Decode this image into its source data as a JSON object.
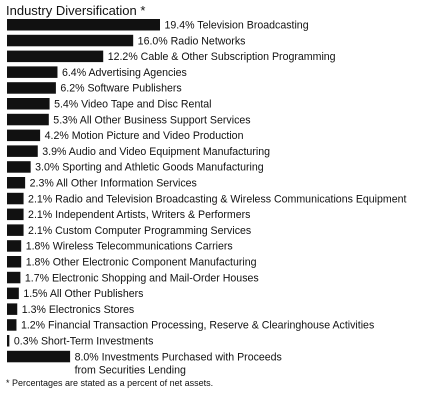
{
  "title": "Industry Diversification *",
  "footnote": "* Percentages are stated as a percent of net assets.",
  "bar_color": "#111111",
  "chart_data": {
    "type": "bar",
    "orientation": "horizontal",
    "unit": "%",
    "title": "Industry Diversification *",
    "categories": [
      "Television Broadcasting",
      "Radio Networks",
      "Cable & Other Subscription Programming",
      "Advertising Agencies",
      "Software Publishers",
      "Video Tape and Disc Rental",
      "All Other Business Support Services",
      "Motion Picture and Video Production",
      "Audio and Video Equipment Manufacturing",
      "Sporting and Athletic Goods Manufacturing",
      "All Other Information Services",
      "Radio and Television Broadcasting & Wireless Communications Equipment",
      "Independent Artists, Writers & Performers",
      "Custom Computer Programming Services",
      "Wireless Telecommunications Carriers",
      "Other Electronic Component Manufacturing",
      "Electronic Shopping and Mail-Order Houses",
      "All Other Publishers",
      "Electronics Stores",
      "Financial Transaction Processing, Reserve & Clearinghouse Activities",
      "Short-Term Investments",
      "Investments Purchased with Proceeds from Securities Lending"
    ],
    "values": [
      19.4,
      16.0,
      12.2,
      6.4,
      6.2,
      5.4,
      5.3,
      4.2,
      3.9,
      3.0,
      2.3,
      2.1,
      2.1,
      2.1,
      1.8,
      1.8,
      1.7,
      1.5,
      1.3,
      1.2,
      0.3,
      8.0
    ],
    "value_labels": [
      "19.4%",
      "16.0%",
      "12.2%",
      "6.4%",
      "6.2%",
      "5.4%",
      "5.3%",
      "4.2%",
      "3.9%",
      "3.0%",
      "2.3%",
      "2.1%",
      "2.1%",
      "2.1%",
      "1.8%",
      "1.8%",
      "1.7%",
      "1.5%",
      "1.3%",
      "1.2%",
      "0.3%",
      "8.0%"
    ],
    "label_lines": [
      [
        "Television Broadcasting"
      ],
      [
        "Radio Networks"
      ],
      [
        "Cable & Other Subscription Programming"
      ],
      [
        "Advertising Agencies"
      ],
      [
        "Software Publishers"
      ],
      [
        "Video Tape and Disc Rental"
      ],
      [
        "All Other Business Support Services"
      ],
      [
        "Motion Picture and Video Production"
      ],
      [
        "Audio and Video Equipment Manufacturing"
      ],
      [
        "Sporting and Athletic Goods Manufacturing"
      ],
      [
        "All Other Information Services"
      ],
      [
        "Radio and Television Broadcasting & Wireless Communications Equipment"
      ],
      [
        "Independent Artists, Writers & Performers"
      ],
      [
        "Custom Computer Programming Services"
      ],
      [
        "Wireless Telecommunications Carriers"
      ],
      [
        "Other Electronic Component Manufacturing"
      ],
      [
        "Electronic Shopping and Mail-Order Houses"
      ],
      [
        "All Other Publishers"
      ],
      [
        "Electronics Stores"
      ],
      [
        "Financial Transaction Processing, Reserve & Clearinghouse Activities"
      ],
      [
        "Short-Term Investments"
      ],
      [
        "Investments Purchased with Proceeds",
        "from Securities Lending"
      ]
    ],
    "xlim": [
      0,
      19.4
    ],
    "grid": false,
    "legend": "none"
  }
}
